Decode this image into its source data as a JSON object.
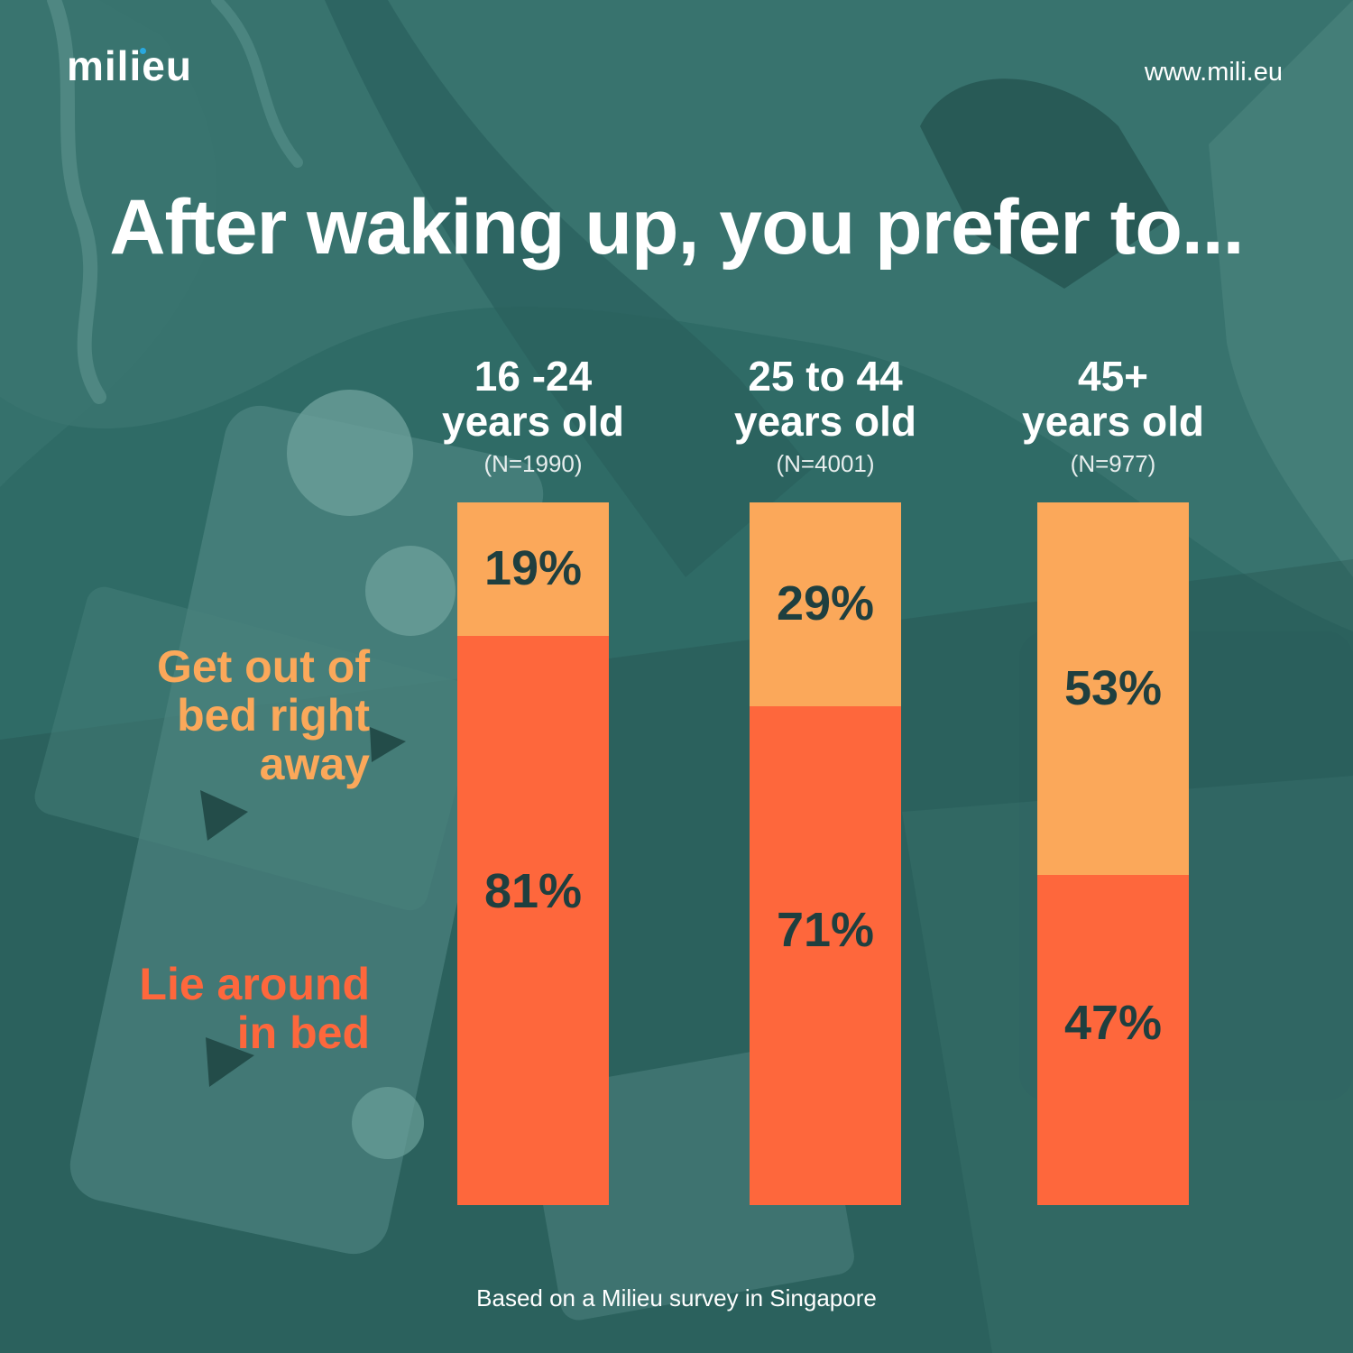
{
  "brand": {
    "logo": "milieu",
    "url": "www.mili.eu"
  },
  "colors": {
    "background": "#2f6b66",
    "get_out": "#fba85a",
    "lie_around": "#fe673c",
    "value_text": "#1f3f3f"
  },
  "chart_data": {
    "type": "bar",
    "stacked": true,
    "normalized": true,
    "title": "After waking up, you prefer to...",
    "categories": [
      "16 -24 years old",
      "25 to 44 years old",
      "45+ years old"
    ],
    "category_lines": [
      [
        "16 -24",
        "years old"
      ],
      [
        "25 to 44",
        "years old"
      ],
      [
        "45+",
        "years old"
      ]
    ],
    "sample_sizes": [
      "(N=1990)",
      "(N=4001)",
      "(N=977)"
    ],
    "series": [
      {
        "name": "Get out of bed right away",
        "name_lines": [
          "Get out of",
          "bed right",
          "away"
        ],
        "color": "#fba85a",
        "values": [
          19,
          29,
          53
        ],
        "labels": [
          "19%",
          "29%",
          "53%"
        ]
      },
      {
        "name": "Lie around in bed",
        "name_lines": [
          "Lie around",
          "in bed"
        ],
        "color": "#fe673c",
        "values": [
          81,
          71,
          47
        ],
        "labels": [
          "81%",
          "71%",
          "47%"
        ]
      }
    ],
    "ylim": [
      0,
      100
    ],
    "legend": "left",
    "footnote": "Based on a Milieu survey in Singapore"
  }
}
